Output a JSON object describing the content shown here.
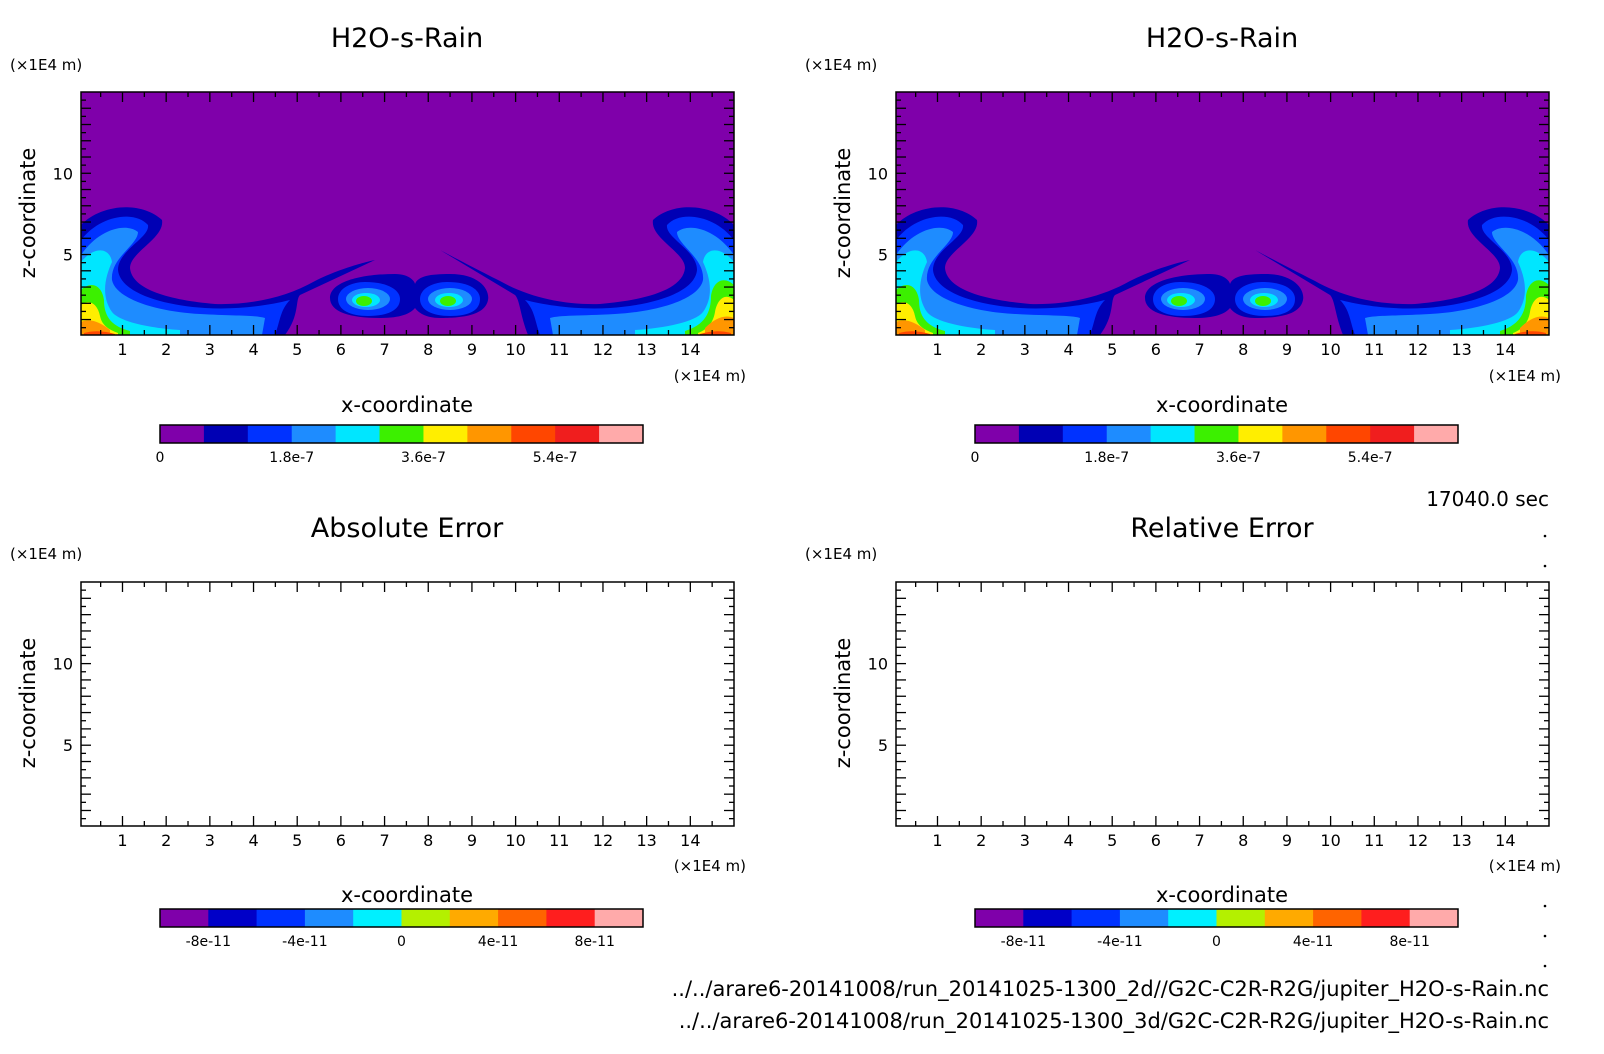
{
  "palettes": {
    "rain": [
      "#7f00aa",
      "#0000b4",
      "#0032ff",
      "#1e8cff",
      "#00e6ff",
      "#3cf000",
      "#ffee00",
      "#ff9600",
      "#ff4600",
      "#f01e1e",
      "#ffaaaa"
    ],
    "error": [
      "#7f00aa",
      "#0000c8",
      "#0032ff",
      "#1e8cff",
      "#00f0ff",
      "#b4f000",
      "#ffaa00",
      "#ff6400",
      "#ff1e1e",
      "#ffaaaa"
    ]
  },
  "chart_data": [
    {
      "type": "heatmap",
      "title": "H2O-s-Rain",
      "xlabel": "x-coordinate",
      "ylabel": "z-coordinate",
      "x_unit": "(×1E4 m)",
      "y_unit": "(×1E4 m)",
      "xlim": [
        0.05,
        15.0
      ],
      "ylim": [
        0.05,
        15.0
      ],
      "x_ticks": [
        1,
        2,
        3,
        4,
        5,
        6,
        7,
        8,
        9,
        10,
        11,
        12,
        13,
        14
      ],
      "y_ticks": [
        5,
        10
      ],
      "colorbar": {
        "levels": 11,
        "tick_labels": [
          "0",
          "1.8e-7",
          "3.6e-7",
          "5.4e-7"
        ],
        "tick_values": [
          0,
          1.8e-07,
          3.6e-07,
          5.4e-07
        ],
        "range": [
          0,
          6.6e-07
        ]
      },
      "features": "rain concentrated near the lower boundary and along both lateral walls (maxima ~4e-7 near x≈0.5 and x≈14.5, z<2); two small cells near x≈6.7 and x≈8.5 at z≈2.3; background zero above z≈6"
    },
    {
      "type": "heatmap",
      "title": "H2O-s-Rain",
      "xlabel": "x-coordinate",
      "ylabel": "z-coordinate",
      "x_unit": "(×1E4 m)",
      "y_unit": "(×1E4 m)",
      "xlim": [
        0.05,
        15.0
      ],
      "ylim": [
        0.05,
        15.0
      ],
      "x_ticks": [
        1,
        2,
        3,
        4,
        5,
        6,
        7,
        8,
        9,
        10,
        11,
        12,
        13,
        14
      ],
      "y_ticks": [
        5,
        10
      ],
      "colorbar": {
        "levels": 11,
        "tick_labels": [
          "0",
          "1.8e-7",
          "3.6e-7",
          "5.4e-7"
        ],
        "tick_values": [
          0,
          1.8e-07,
          3.6e-07,
          5.4e-07
        ],
        "range": [
          0,
          6.6e-07
        ]
      },
      "features": "identical pattern to the first panel"
    },
    {
      "type": "heatmap",
      "title": "Absolute Error",
      "xlabel": "x-coordinate",
      "ylabel": "z-coordinate",
      "x_unit": "(×1E4 m)",
      "y_unit": "(×1E4 m)",
      "xlim": [
        0.05,
        15.0
      ],
      "ylim": [
        0.05,
        15.0
      ],
      "x_ticks": [
        1,
        2,
        3,
        4,
        5,
        6,
        7,
        8,
        9,
        10,
        11,
        12,
        13,
        14
      ],
      "y_ticks": [
        5,
        10
      ],
      "colorbar": {
        "levels": 10,
        "tick_labels": [
          "-8e-11",
          "-4e-11",
          "0",
          "4e-11",
          "8e-11"
        ],
        "tick_values": [
          -8e-11,
          -4e-11,
          0,
          4e-11,
          8e-11
        ],
        "range": [
          -1e-10,
          1e-10
        ]
      },
      "features": "empty field (no contours drawn)"
    },
    {
      "type": "heatmap",
      "title": "Relative Error",
      "xlabel": "x-coordinate",
      "ylabel": "z-coordinate",
      "x_unit": "(×1E4 m)",
      "y_unit": "(×1E4 m)",
      "xlim": [
        0.05,
        15.0
      ],
      "ylim": [
        0.05,
        15.0
      ],
      "x_ticks": [
        1,
        2,
        3,
        4,
        5,
        6,
        7,
        8,
        9,
        10,
        11,
        12,
        13,
        14
      ],
      "y_ticks": [
        5,
        10
      ],
      "colorbar": {
        "levels": 10,
        "tick_labels": [
          "-8e-11",
          "-4e-11",
          "0",
          "4e-11",
          "8e-11"
        ],
        "tick_values": [
          -8e-11,
          -4e-11,
          0,
          4e-11,
          8e-11
        ],
        "range": [
          -1e-10,
          1e-10
        ]
      },
      "features": "empty field (no contours drawn)"
    }
  ],
  "time_label": "17040.0 sec",
  "footer": [
    "../../arare6-20141008/run_20141025-1300_2d//G2C-C2R-R2G/jupiter_H2O-s-Rain.nc",
    "../../arare6-20141008/run_20141025-1300_3d/G2C-C2R-R2G/jupiter_H2O-s-Rain.nc"
  ]
}
